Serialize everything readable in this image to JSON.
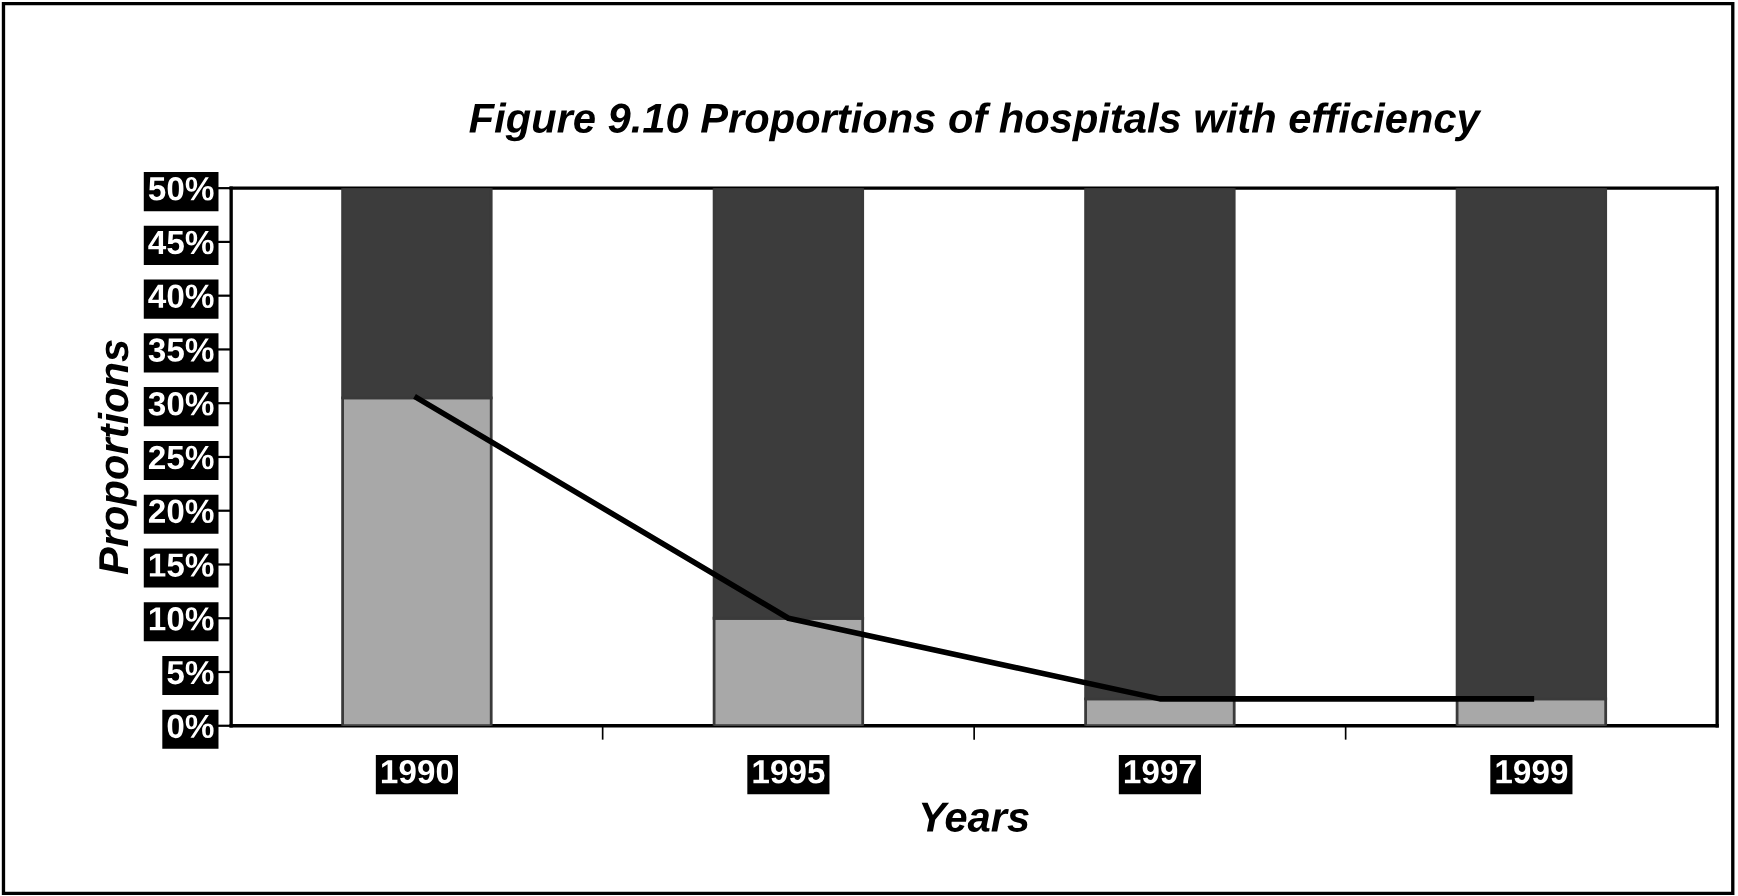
{
  "chart_data": {
    "type": "bar",
    "stacked": true,
    "title": "Figure 9.10 Proportions of hospitals with efficiency",
    "xlabel": "Years",
    "ylabel": "Proportions",
    "categories": [
      "1990",
      "1995",
      "1997",
      "1999"
    ],
    "series": [
      {
        "color": "#a8a8a8",
        "values": [
          30.5,
          10,
          2.5,
          2.5
        ]
      },
      {
        "color": "#3c3c3c",
        "values": [
          19.5,
          40,
          47.5,
          47.5
        ]
      },
      {
        "type": "line",
        "color": "#000000",
        "values": [
          30.5,
          10,
          2.5,
          2.5
        ]
      }
    ],
    "ylim": [
      0,
      50
    ],
    "yticks": [
      {
        "value": 0,
        "label": "0%"
      },
      {
        "value": 5,
        "label": "5%"
      },
      {
        "value": 10,
        "label": "10%"
      },
      {
        "value": 15,
        "label": "15%"
      },
      {
        "value": 20,
        "label": "20%"
      },
      {
        "value": 25,
        "label": "25%"
      },
      {
        "value": 30,
        "label": "30%"
      },
      {
        "value": 35,
        "label": "35%"
      },
      {
        "value": 40,
        "label": "40%"
      },
      {
        "value": 45,
        "label": "45%"
      },
      {
        "value": 50,
        "label": "50%"
      }
    ],
    "grid": false,
    "legend": false
  }
}
